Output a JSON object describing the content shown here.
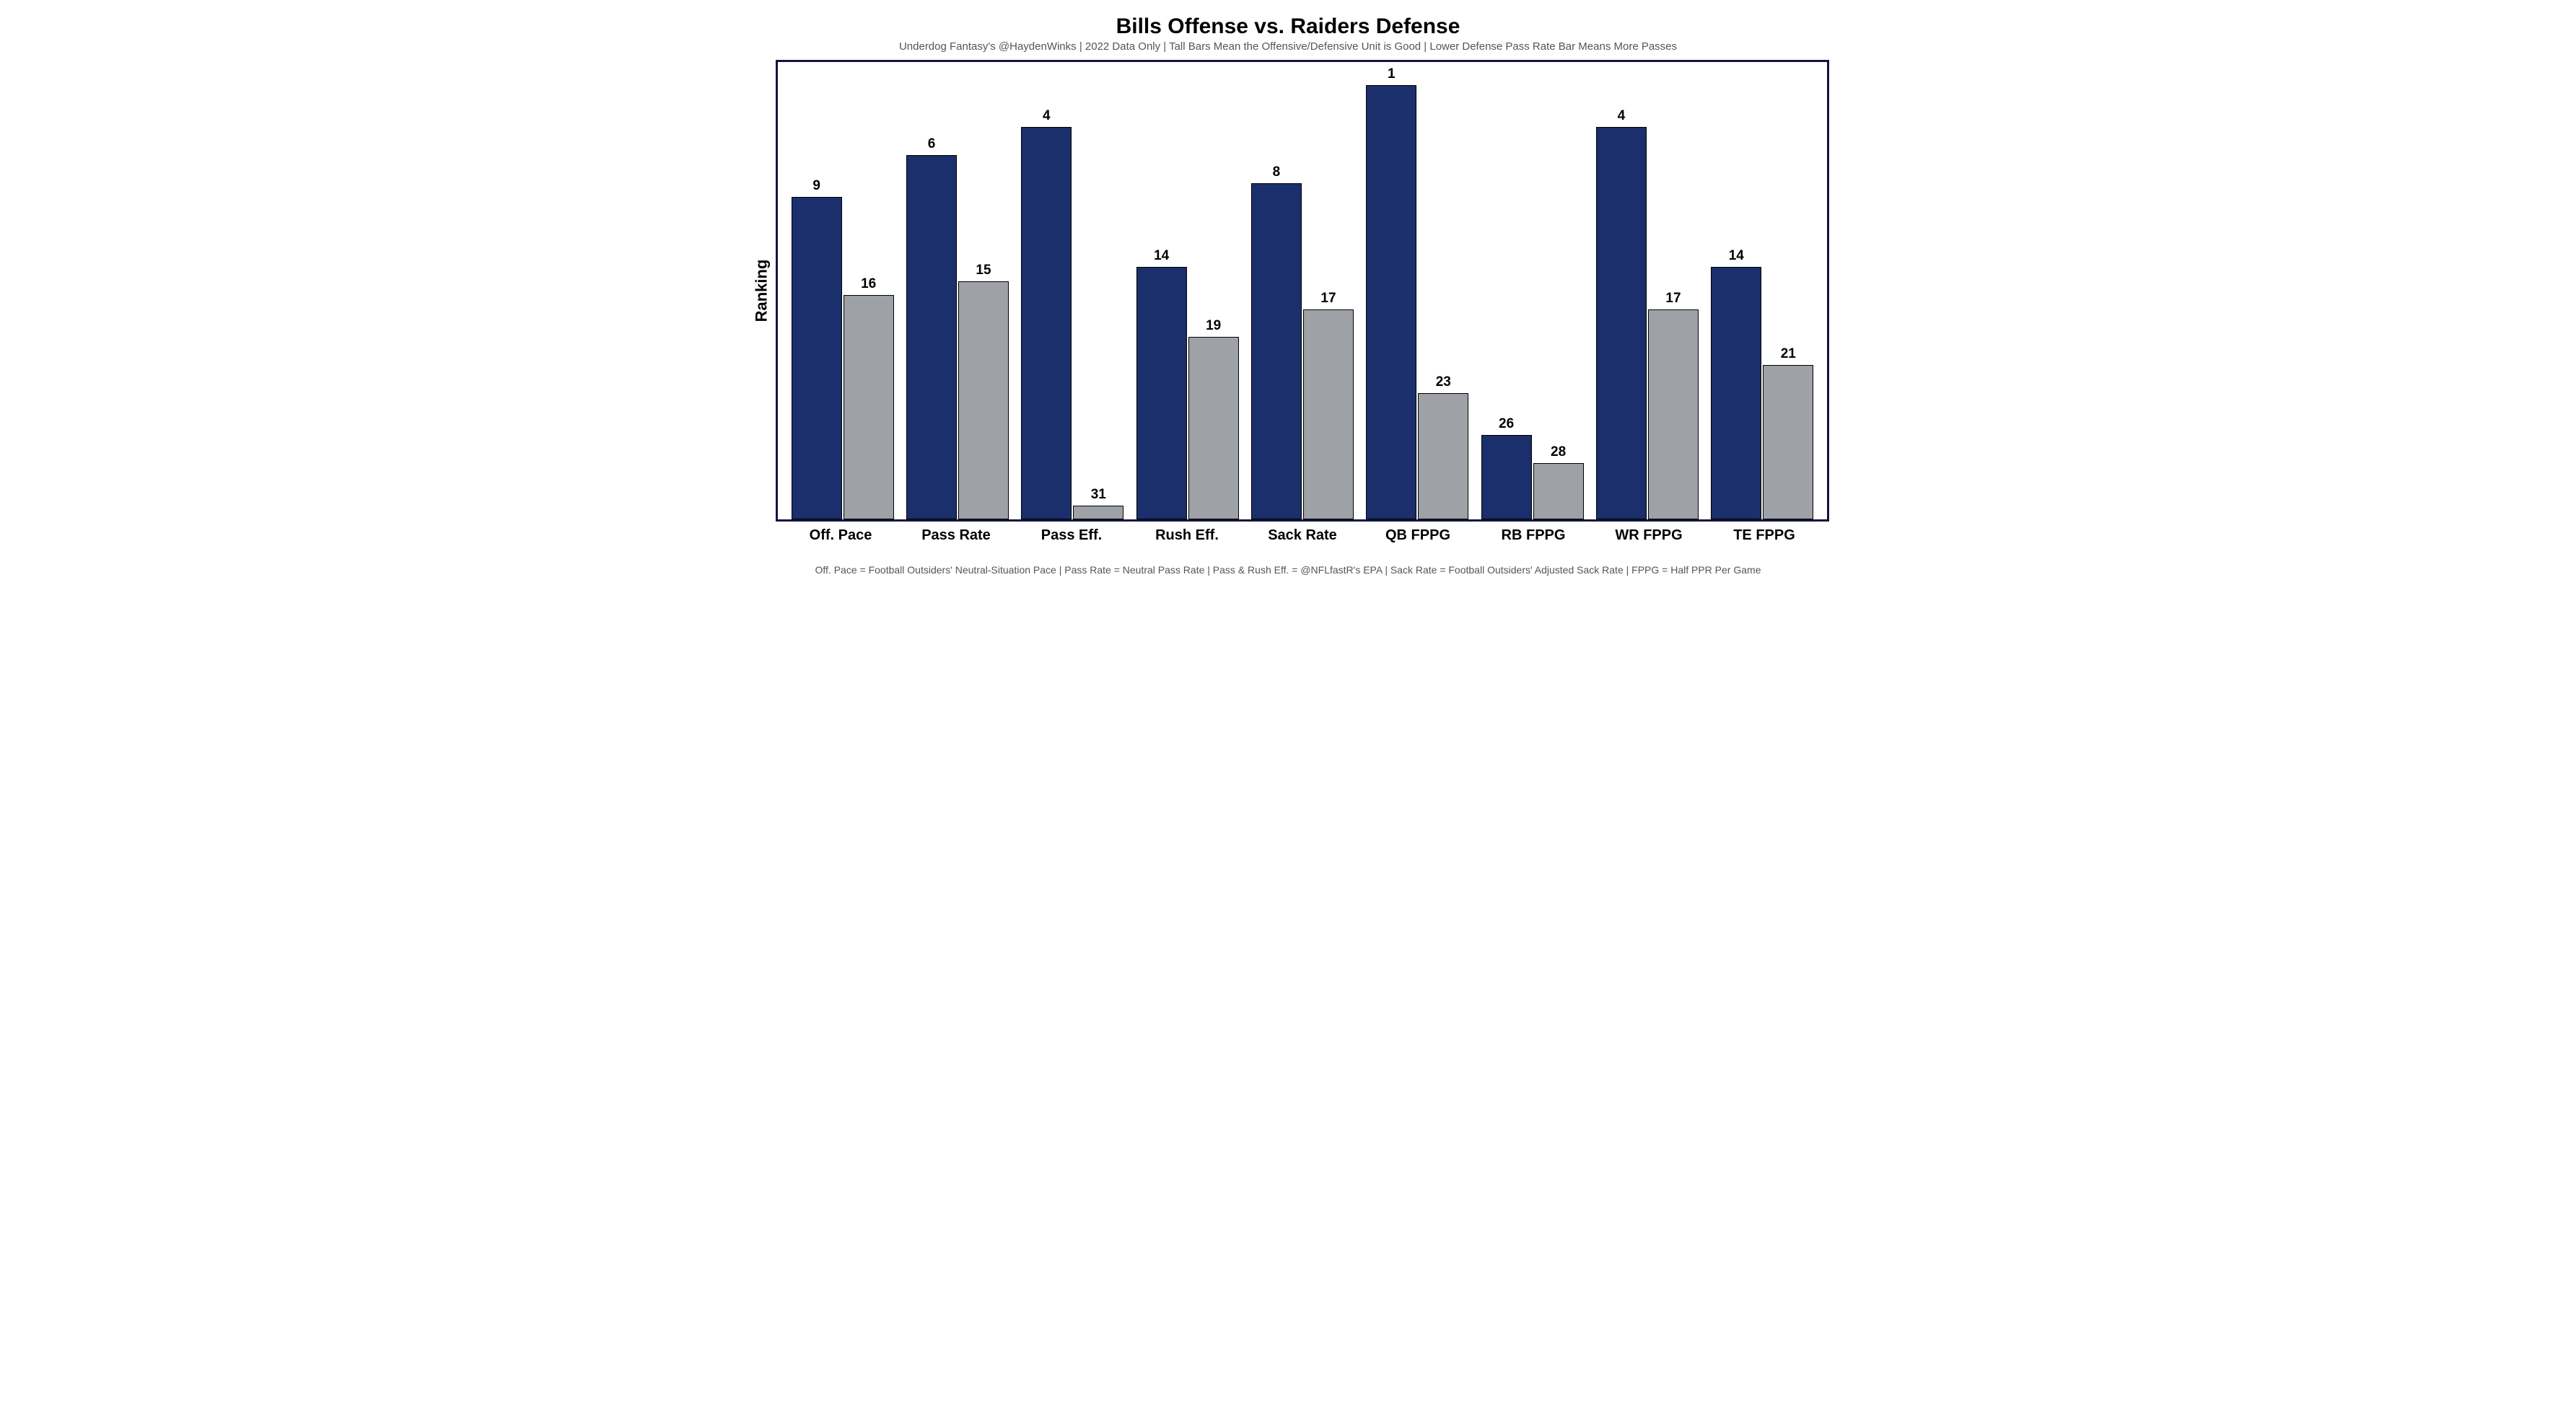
{
  "chart": {
    "type": "grouped-bar",
    "title": "Bills Offense vs. Raiders Defense",
    "title_fontsize": 30,
    "subtitle": "Underdog Fantasy's @HaydenWinks | 2022 Data Only | Tall Bars Mean the Offensive/Defensive Unit is Good | Lower Defense Pass Rate Bar Means More Passes",
    "subtitle_fontsize": 15,
    "ylabel": "Ranking",
    "ylabel_fontsize": 22,
    "xlabel_fontsize": 20,
    "value_label_fontsize": 19,
    "footer": "Off. Pace = Football Outsiders' Neutral-Situation Pace | Pass Rate = Neutral Pass Rate | Pass & Rush Eff. = @NFLfastR's EPA | Sack Rate = Football Outsiders' Adjusted Sack Rate | FPPG = Half PPR Per Game",
    "footer_fontsize": 14,
    "background_color": "#ffffff",
    "border_color": "#14143c",
    "rank_min": 1,
    "rank_max": 32,
    "series": [
      {
        "name": "offense",
        "color": "#1a2f6b"
      },
      {
        "name": "defense",
        "color": "#9ea2a6"
      }
    ],
    "categories": [
      {
        "label": "Off. Pace",
        "offense": 9,
        "defense": 16
      },
      {
        "label": "Pass Rate",
        "offense": 6,
        "defense": 15
      },
      {
        "label": "Pass Eff.",
        "offense": 4,
        "defense": 31
      },
      {
        "label": "Rush Eff.",
        "offense": 14,
        "defense": 19
      },
      {
        "label": "Sack Rate",
        "offense": 8,
        "defense": 17
      },
      {
        "label": "QB FPPG",
        "offense": 1,
        "defense": 23
      },
      {
        "label": "RB FPPG",
        "offense": 26,
        "defense": 28
      },
      {
        "label": "WR FPPG",
        "offense": 4,
        "defense": 17
      },
      {
        "label": "TE FPPG",
        "offense": 14,
        "defense": 21
      }
    ]
  }
}
